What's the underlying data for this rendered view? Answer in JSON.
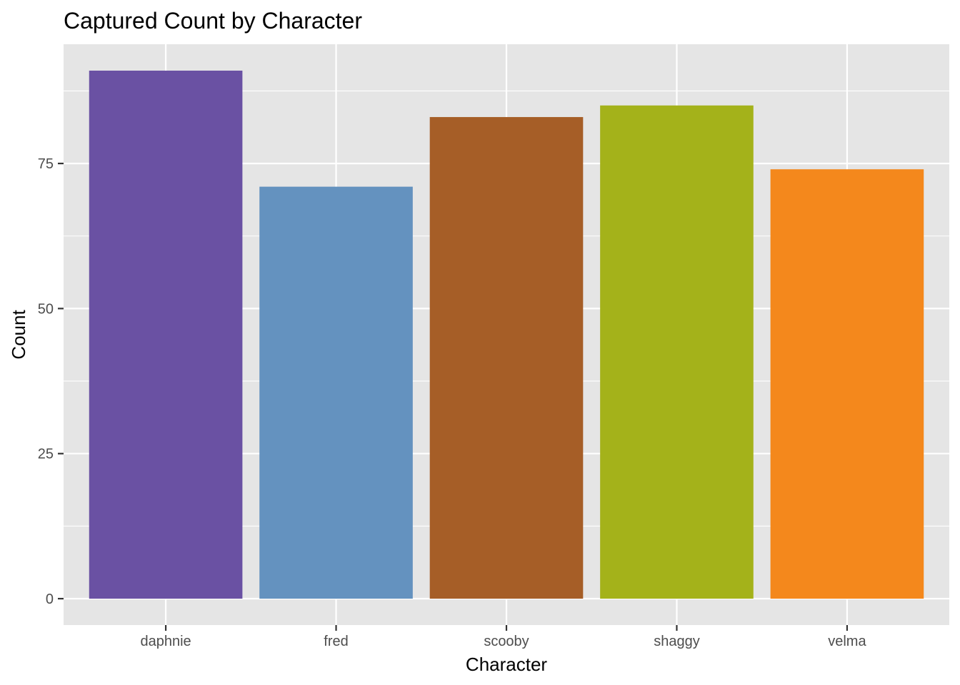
{
  "chart_data": {
    "type": "bar",
    "title": "Captured Count by Character",
    "xlabel": "Character",
    "ylabel": "Count",
    "categories": [
      "daphnie",
      "fred",
      "scooby",
      "shaggy",
      "velma"
    ],
    "values": [
      91,
      71,
      83,
      85,
      74
    ],
    "colors": [
      "#6A51A3",
      "#6492BF",
      "#A65E27",
      "#A4B21A",
      "#F4881C"
    ],
    "yticks": [
      0,
      25,
      50,
      75
    ],
    "ylim": [
      -4.55,
      95.55
    ],
    "grid": true,
    "legend": "none",
    "panel_background": "#E5E5E5",
    "grid_color": "#FFFFFF"
  }
}
